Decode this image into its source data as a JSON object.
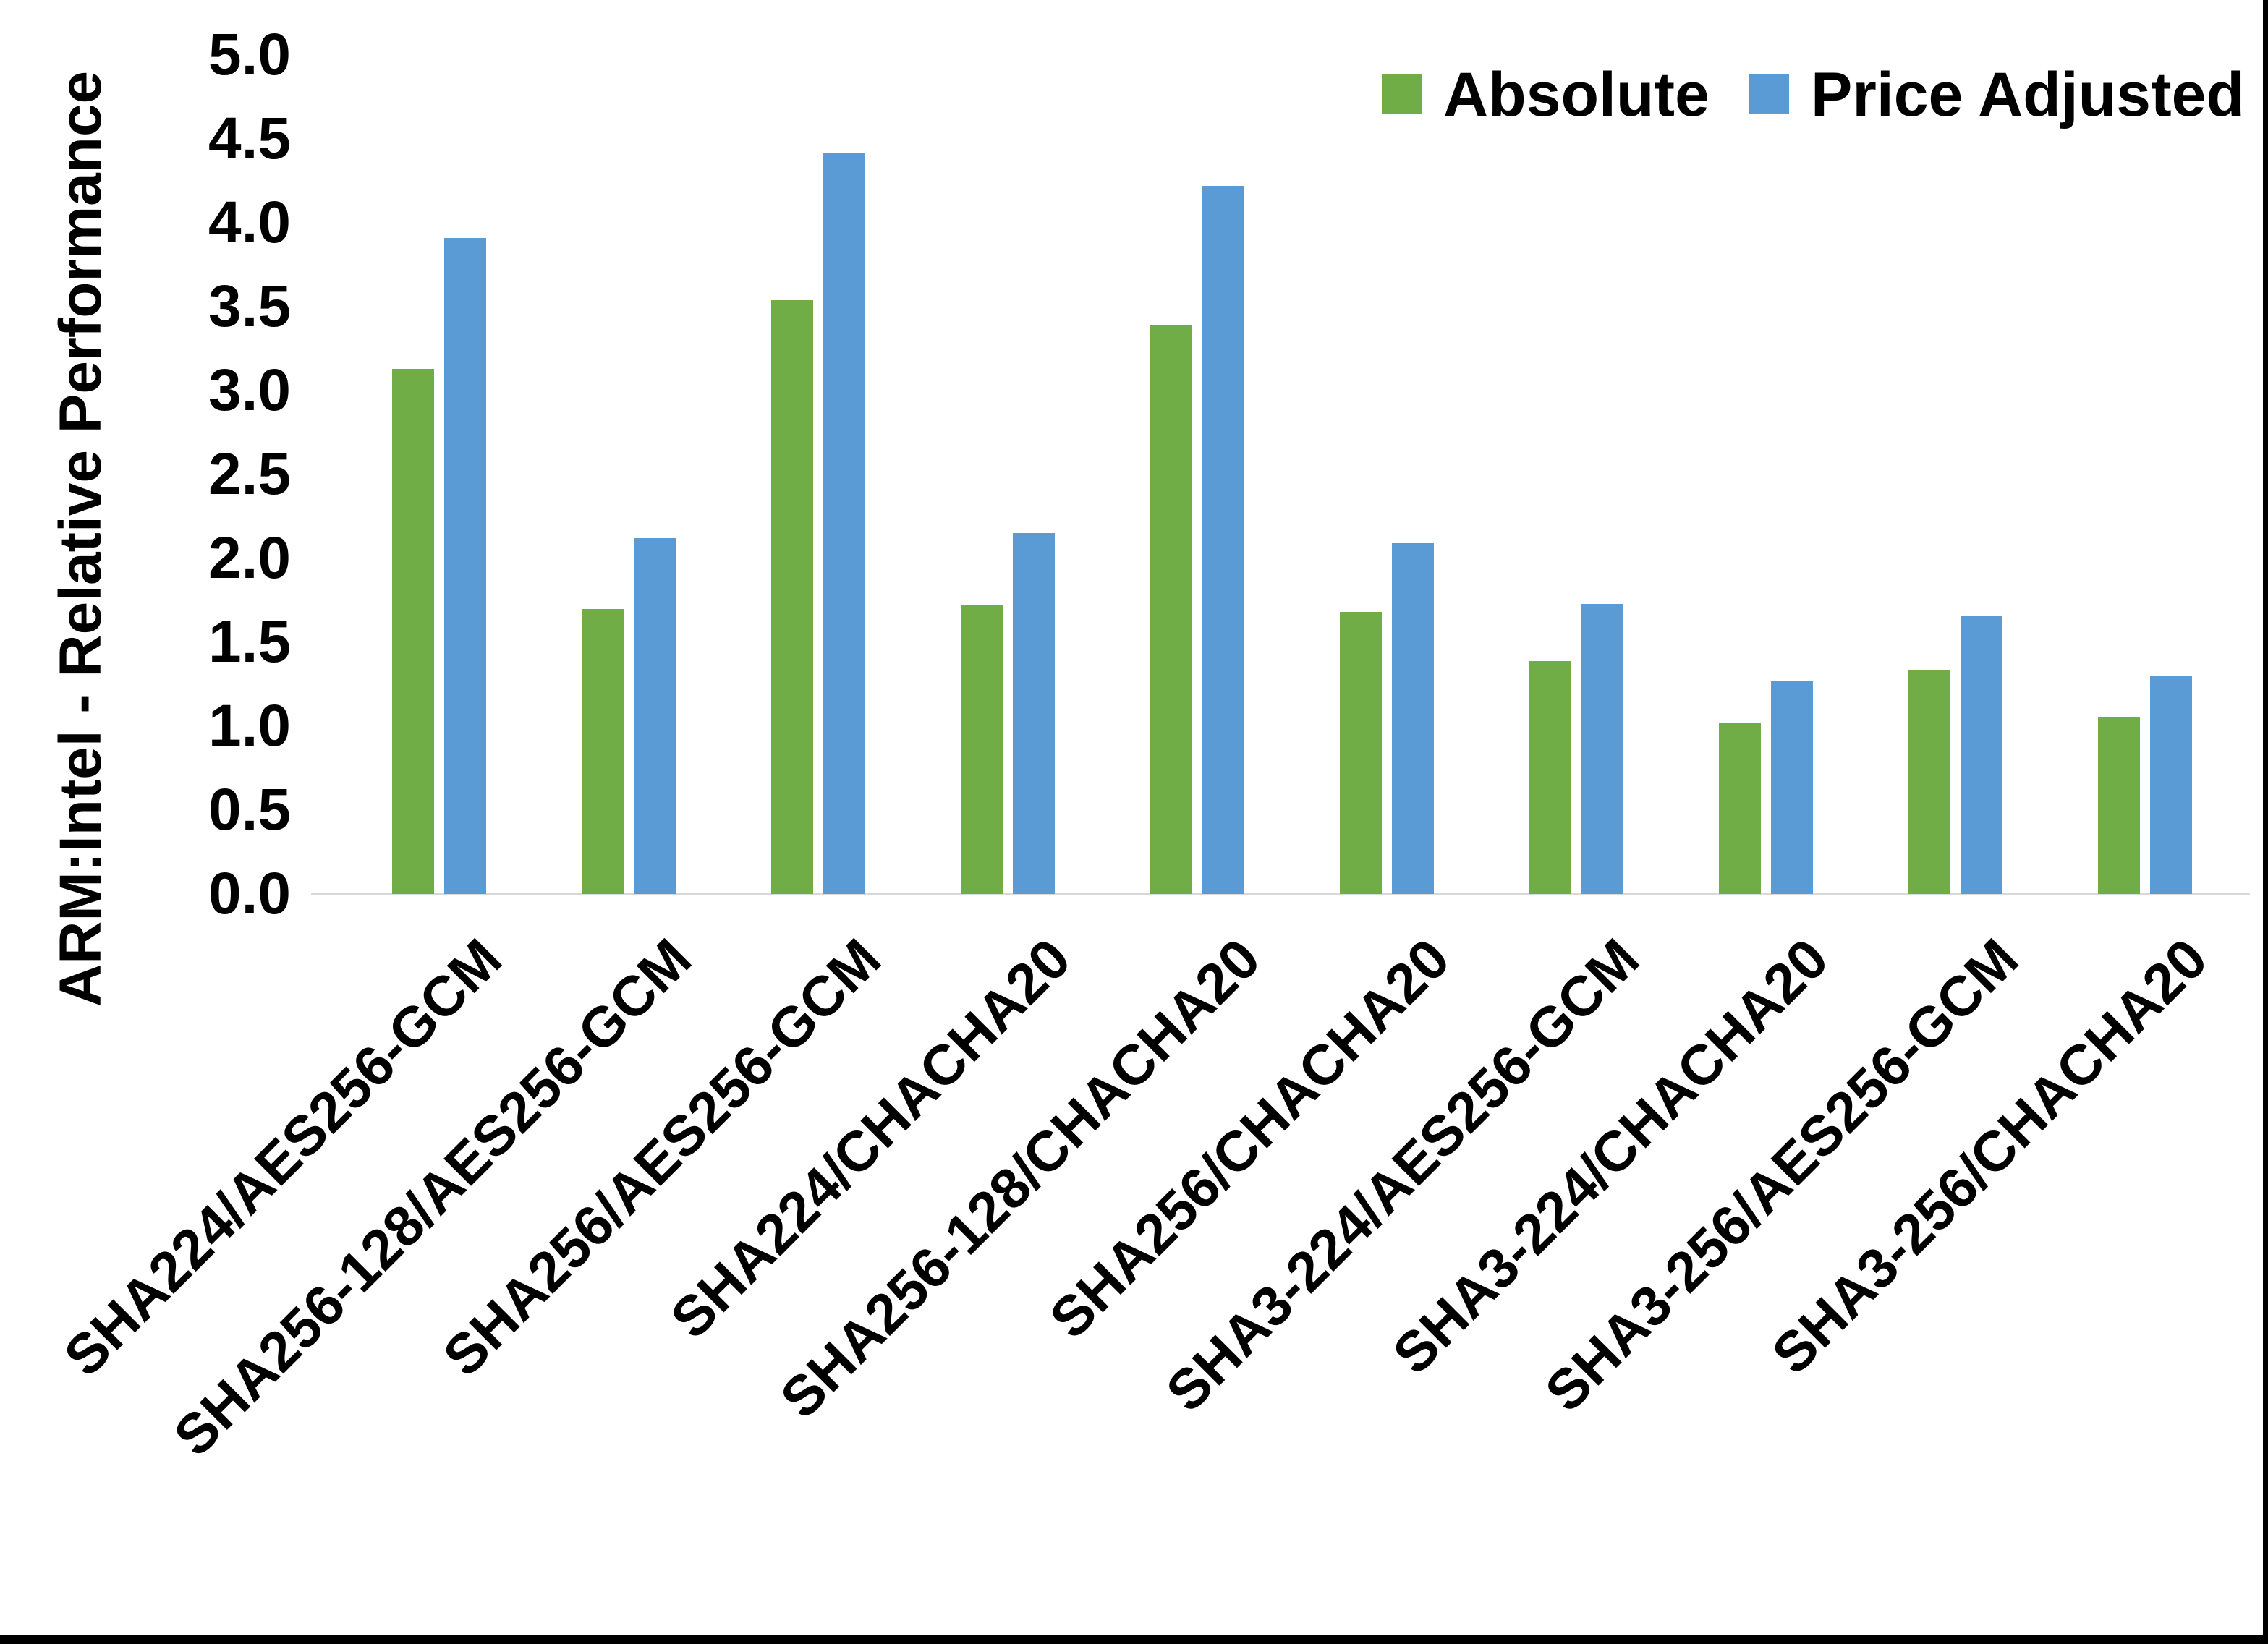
{
  "chart_data": {
    "type": "bar",
    "title": "",
    "xlabel": "",
    "ylabel": "ARM:Intel - Relative Performance",
    "ylim": [
      0.0,
      5.0
    ],
    "ytick_step": 0.5,
    "ytick_labels": [
      "0.0",
      "0.5",
      "1.0",
      "1.5",
      "2.0",
      "2.5",
      "3.0",
      "3.5",
      "4.0",
      "4.5",
      "5.0"
    ],
    "grid": false,
    "legend_position": "top-right",
    "categories": [
      "SHA224/AES256-GCM",
      "SHA256-128/AES256-GCM",
      "SHA256/AES256-GCM",
      "SHA224/CHACHA20",
      "SHA256-128/CHACHA20",
      "SHA256/CHACHA20",
      "SHA3-224/AES256-GCM",
      "SHA3-224/CHACHA20",
      "SHA3-256/AES256-GCM",
      "SHA3-256/CHACHA20"
    ],
    "series": [
      {
        "name": "Absolute",
        "color": "#70AD47",
        "values": [
          3.13,
          1.7,
          3.54,
          1.72,
          3.39,
          1.68,
          1.39,
          1.02,
          1.33,
          1.05
        ]
      },
      {
        "name": "Price Adjusted",
        "color": "#5B9BD5",
        "values": [
          3.91,
          2.12,
          4.42,
          2.15,
          4.22,
          2.09,
          1.73,
          1.27,
          1.66,
          1.3
        ]
      }
    ],
    "baseline_color": "#D9D9D9",
    "frame_border_color": "#000000"
  }
}
